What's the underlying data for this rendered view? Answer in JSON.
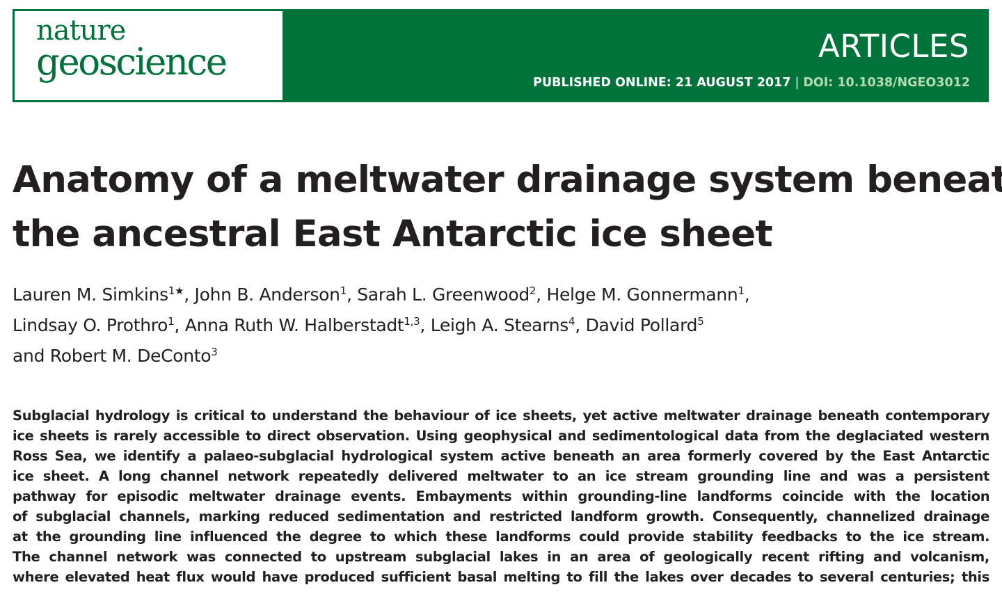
{
  "masthead": {
    "logo_line1": "nature",
    "logo_line2": "geoscience",
    "section": "ARTICLES",
    "published": "PUBLISHED ONLINE: 21 AUGUST 2017",
    "separator": "|",
    "doi": "DOI: 10.1038/NGEO3012",
    "colors": {
      "brand_green": "#00733a",
      "doi_text": "#b5dcb0"
    }
  },
  "title_lines": [
    "Anatomy of a meltwater drainage system beneath",
    "the ancestral East Antarctic ice sheet"
  ],
  "authors": [
    {
      "name": "Lauren M. Simkins",
      "aff": "1★",
      "sep": ", "
    },
    {
      "name": "John B. Anderson",
      "aff": "1",
      "sep": ", "
    },
    {
      "name": "Sarah L. Greenwood",
      "aff": "2",
      "sep": ", "
    },
    {
      "name": "Helge M. Gonnermann",
      "aff": "1",
      "sep": ","
    },
    {
      "name": "Lindsay O. Prothro",
      "aff": "1",
      "sep": ", "
    },
    {
      "name": "Anna Ruth W. Halberstadt",
      "aff": "1,3",
      "sep": ", "
    },
    {
      "name": "Leigh A. Stearns",
      "aff": "4",
      "sep": ", "
    },
    {
      "name": "David Pollard",
      "aff": "5",
      "sep": ""
    },
    {
      "name": "and Robert M. DeConto",
      "aff": "3",
      "sep": ""
    }
  ],
  "abstract_lines": [
    "Subglacial hydrology is critical to understand the behaviour of ice sheets, yet active meltwater drainage beneath contemporary",
    "ice sheets is rarely accessible to direct observation. Using geophysical and sedimentological data from the deglaciated western",
    "Ross Sea, we identify a palaeo-subglacial hydrological system active beneath an area formerly covered by the East Antarctic",
    "ice sheet. A long channel network repeatedly delivered meltwater to an ice stream grounding line and was a persistent",
    "pathway for episodic meltwater drainage events. Embayments within grounding-line landforms coincide with the location",
    "of subglacial channels, marking reduced sedimentation and restricted landform growth. Consequently, channelized drainage",
    "at the grounding line influenced the degree to which these landforms could provide stability feedbacks to the ice stream.",
    "The channel network was connected to upstream subglacial lakes in an area of geologically recent rifting and volcanism,",
    "where elevated heat flux would have produced sufficient basal melting to fill the lakes over decades to several centuries; this"
  ]
}
